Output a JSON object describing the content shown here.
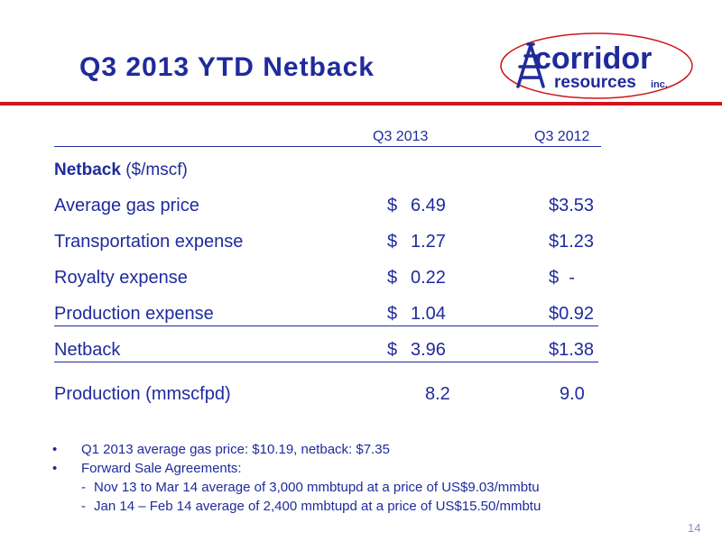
{
  "title": "Q3 2013 YTD Netback",
  "logo": {
    "text_main": "corridor",
    "text_sub": "resources",
    "text_inc": "inc.",
    "colors": {
      "blue": "#1f2b9c",
      "red": "#d0151b"
    }
  },
  "table": {
    "col_q3_2013": "Q3  2013",
    "col_q3_2012": "Q3 2012",
    "section_title_bold": "Netback",
    "section_title_rest": " ($/mscf)",
    "rows": [
      {
        "label": "Average gas price",
        "currency": "$",
        "q3_2013": "6.49",
        "q3_2012": "$3.53"
      },
      {
        "label": "Transportation expense",
        "currency": "$",
        "q3_2013": "1.27",
        "q3_2012": "$1.23"
      },
      {
        "label": "Royalty expense",
        "currency": "$",
        "q3_2013": "0.22",
        "q3_2012": "$  -"
      },
      {
        "label": "Production expense",
        "currency": "$",
        "q3_2013": "1.04",
        "q3_2012": "$0.92"
      },
      {
        "label": "Netback",
        "currency": "$",
        "q3_2013": "3.96",
        "q3_2012": "$1.38"
      }
    ],
    "production": {
      "label": "Production (mmscfpd)",
      "q3_2013": "8.2",
      "q3_2012": "9.0"
    }
  },
  "bullets": {
    "b1": "Q1 2013 average gas price:  $10.19, netback:  $7.35",
    "b2": "Forward Sale Agreements:",
    "sub1": "Nov 13 to Mar 14 average of 3,000 mmbtupd at a price of US$9.03/mmbtu",
    "sub2": "Jan 14 – Feb 14 average of 2,400 mmbtupd at a price of US$15.50/mmbtu",
    "bullet_char": "•",
    "dash_char": "-"
  },
  "page_number": "14"
}
